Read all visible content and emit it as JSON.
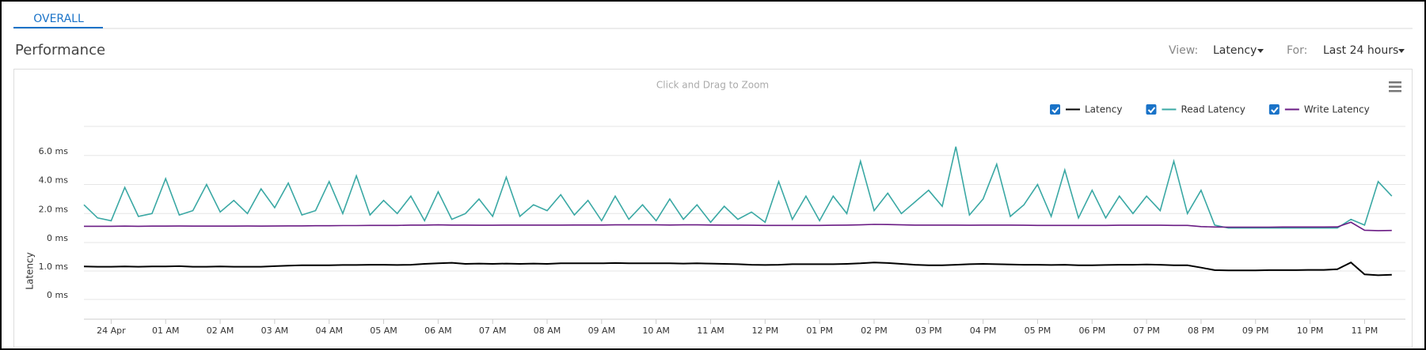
{
  "tab": "OVERALL",
  "header": {
    "title": "Performance",
    "view_label": "View:",
    "view_value": "Latency",
    "for_label": "For:",
    "for_value": "Last 24 hours"
  },
  "chart_data": {
    "type": "line",
    "subtitle": "Click and Drag to Zoom",
    "y_label": "Latency",
    "grid": true,
    "x": [
      -0.5,
      -0.25,
      0,
      0.25,
      0.5,
      0.75,
      1,
      1.25,
      1.5,
      1.75,
      2,
      2.25,
      2.5,
      2.75,
      3,
      3.25,
      3.5,
      3.75,
      4,
      4.25,
      4.5,
      4.75,
      5,
      5.25,
      5.5,
      5.75,
      6,
      6.25,
      6.5,
      6.75,
      7,
      7.25,
      7.5,
      7.75,
      8,
      8.25,
      8.5,
      8.75,
      9,
      9.25,
      9.5,
      9.75,
      10,
      10.25,
      10.5,
      10.75,
      11,
      11.25,
      11.5,
      11.75,
      12,
      12.25,
      12.5,
      12.75,
      13,
      13.25,
      13.5,
      13.75,
      14,
      14.25,
      14.5,
      14.75,
      15,
      15.25,
      15.5,
      15.75,
      16,
      16.25,
      16.5,
      16.75,
      17,
      17.25,
      17.5,
      17.75,
      18,
      18.25,
      18.5,
      18.75,
      19,
      19.25,
      19.5,
      19.75,
      20,
      20.25,
      20.5,
      20.75,
      21,
      21.25,
      21.5,
      21.75,
      22,
      22.25,
      22.5,
      22.75,
      23,
      23.25,
      23.5
    ],
    "xlim": [
      -0.5,
      23.75
    ],
    "xticks": [
      {
        "value": 0,
        "label": "24 Apr"
      },
      {
        "value": 1,
        "label": "01 AM"
      },
      {
        "value": 2,
        "label": "02 AM"
      },
      {
        "value": 3,
        "label": "03 AM"
      },
      {
        "value": 4,
        "label": "04 AM"
      },
      {
        "value": 5,
        "label": "05 AM"
      },
      {
        "value": 6,
        "label": "06 AM"
      },
      {
        "value": 7,
        "label": "07 AM"
      },
      {
        "value": 8,
        "label": "08 AM"
      },
      {
        "value": 9,
        "label": "09 AM"
      },
      {
        "value": 10,
        "label": "10 AM"
      },
      {
        "value": 11,
        "label": "11 AM"
      },
      {
        "value": 12,
        "label": "12 PM"
      },
      {
        "value": 13,
        "label": "01 PM"
      },
      {
        "value": 14,
        "label": "02 PM"
      },
      {
        "value": 15,
        "label": "03 PM"
      },
      {
        "value": 16,
        "label": "04 PM"
      },
      {
        "value": 17,
        "label": "05 PM"
      },
      {
        "value": 18,
        "label": "06 PM"
      },
      {
        "value": 19,
        "label": "07 PM"
      },
      {
        "value": 20,
        "label": "08 PM"
      },
      {
        "value": 21,
        "label": "09 PM"
      },
      {
        "value": 22,
        "label": "10 PM"
      },
      {
        "value": 23,
        "label": "11 PM"
      }
    ],
    "panes": [
      {
        "ylim": [
          0,
          8
        ],
        "yticks": [
          {
            "value": 0,
            "label": "0 ms"
          },
          {
            "value": 2,
            "label": "2.0 ms"
          },
          {
            "value": 4,
            "label": "4.0 ms"
          },
          {
            "value": 6,
            "label": "6.0 ms"
          },
          8
        ],
        "series": [
          {
            "name": "Read Latency",
            "color": "#3aa8a4",
            "values": [
              2.6,
              1.7,
              1.5,
              3.8,
              1.8,
              2.0,
              4.4,
              1.9,
              2.2,
              4.0,
              2.1,
              2.9,
              2.0,
              3.7,
              2.4,
              4.1,
              1.9,
              2.2,
              4.2,
              2.0,
              4.6,
              1.9,
              2.9,
              2.0,
              3.2,
              1.5,
              3.5,
              1.6,
              2.0,
              3.0,
              1.8,
              4.5,
              1.8,
              2.6,
              2.2,
              3.3,
              1.9,
              2.9,
              1.5,
              3.2,
              1.6,
              2.6,
              1.5,
              3.0,
              1.6,
              2.6,
              1.4,
              2.5,
              1.6,
              2.1,
              1.4,
              4.2,
              1.6,
              3.2,
              1.5,
              3.2,
              2.0,
              5.6,
              2.2,
              3.4,
              2.0,
              2.8,
              3.6,
              2.5,
              6.6,
              1.9,
              3.0,
              5.4,
              1.8,
              2.6,
              4.0,
              1.8,
              5.0,
              1.7,
              3.6,
              1.7,
              3.2,
              2.0,
              3.2,
              2.2,
              5.6,
              2.0,
              3.6,
              1.2,
              1.0,
              1.0,
              1.0,
              1.0,
              1.0,
              1.0,
              1.0,
              1.0,
              1.0,
              1.6,
              1.2,
              4.2,
              3.2
            ]
          },
          {
            "name": "Write Latency",
            "color": "#6a1b84",
            "values": [
              1.12,
              1.12,
              1.12,
              1.13,
              1.12,
              1.13,
              1.13,
              1.14,
              1.13,
              1.13,
              1.13,
              1.13,
              1.14,
              1.13,
              1.14,
              1.15,
              1.15,
              1.16,
              1.16,
              1.17,
              1.17,
              1.18,
              1.18,
              1.18,
              1.2,
              1.2,
              1.22,
              1.2,
              1.2,
              1.19,
              1.19,
              1.2,
              1.2,
              1.2,
              1.2,
              1.2,
              1.21,
              1.21,
              1.21,
              1.22,
              1.22,
              1.22,
              1.22,
              1.21,
              1.22,
              1.22,
              1.21,
              1.2,
              1.2,
              1.19,
              1.18,
              1.18,
              1.18,
              1.18,
              1.18,
              1.19,
              1.2,
              1.22,
              1.25,
              1.24,
              1.22,
              1.2,
              1.2,
              1.2,
              1.2,
              1.19,
              1.2,
              1.2,
              1.2,
              1.19,
              1.18,
              1.18,
              1.18,
              1.18,
              1.18,
              1.18,
              1.19,
              1.19,
              1.19,
              1.19,
              1.18,
              1.18,
              1.1,
              1.07,
              1.06,
              1.06,
              1.06,
              1.06,
              1.07,
              1.07,
              1.07,
              1.07,
              1.08,
              1.4,
              0.85,
              0.82,
              0.83
            ]
          }
        ]
      },
      {
        "ylim": [
          0,
          2
        ],
        "yticks": [
          {
            "value": 0,
            "label": "0 ms"
          },
          {
            "value": 1,
            "label": "1.0 ms"
          }
        ],
        "series": [
          {
            "name": "Latency",
            "color": "#000000",
            "values": [
              1.16,
              1.15,
              1.15,
              1.16,
              1.15,
              1.16,
              1.16,
              1.17,
              1.15,
              1.15,
              1.16,
              1.15,
              1.15,
              1.15,
              1.17,
              1.19,
              1.2,
              1.2,
              1.2,
              1.21,
              1.21,
              1.22,
              1.22,
              1.21,
              1.22,
              1.25,
              1.27,
              1.29,
              1.25,
              1.26,
              1.25,
              1.26,
              1.25,
              1.26,
              1.25,
              1.27,
              1.27,
              1.27,
              1.27,
              1.28,
              1.27,
              1.27,
              1.27,
              1.27,
              1.26,
              1.27,
              1.26,
              1.25,
              1.24,
              1.22,
              1.21,
              1.22,
              1.24,
              1.24,
              1.24,
              1.24,
              1.25,
              1.27,
              1.3,
              1.28,
              1.25,
              1.22,
              1.2,
              1.2,
              1.22,
              1.24,
              1.25,
              1.24,
              1.23,
              1.22,
              1.22,
              1.21,
              1.22,
              1.2,
              1.2,
              1.21,
              1.22,
              1.22,
              1.23,
              1.22,
              1.2,
              1.2,
              1.12,
              1.03,
              1.02,
              1.02,
              1.02,
              1.03,
              1.03,
              1.03,
              1.04,
              1.04,
              1.06,
              1.3,
              0.88,
              0.85,
              0.87
            ]
          }
        ]
      }
    ]
  }
}
